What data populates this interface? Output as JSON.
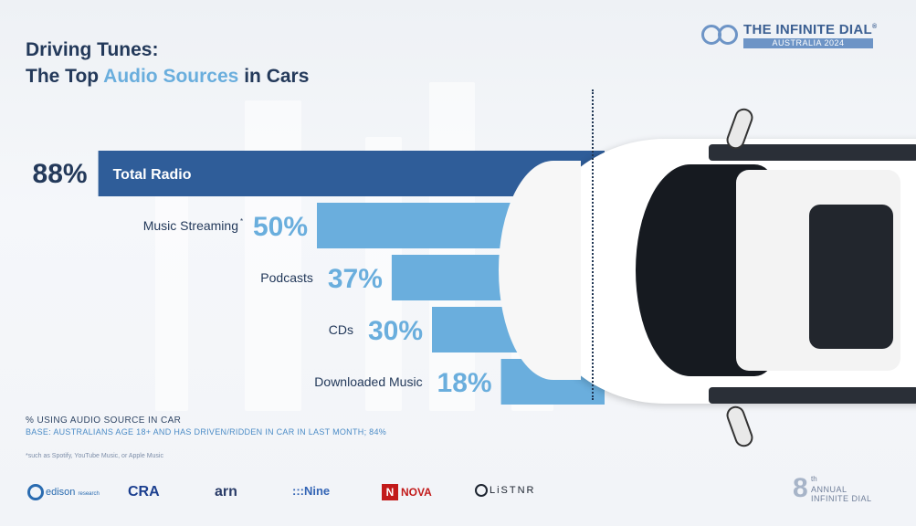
{
  "title": {
    "line1": "Driving Tunes:",
    "line2_pre": "The Top ",
    "line2_highlight": "Audio Sources",
    "line2_post": " in Cars"
  },
  "brand": {
    "name": "THE INFINITE DIAL",
    "registered": "®",
    "edition": "AUSTRALIA 2024"
  },
  "chart_data": {
    "type": "bar",
    "orientation": "horizontal",
    "unit": "%",
    "categories": [
      "Total Radio",
      "Music Streaming",
      "Podcasts",
      "CDs",
      "Downloaded Music"
    ],
    "values": [
      88,
      50,
      37,
      30,
      18
    ],
    "value_labels": [
      "88%",
      "50%",
      "37%",
      "30%",
      "18%"
    ],
    "category_footnote_marks": [
      "",
      "*",
      "",
      "",
      ""
    ],
    "xlim": [
      0,
      100
    ],
    "highlight_index": 0,
    "colors": {
      "highlight": "#2f5d99",
      "default": "#6aaedd"
    }
  },
  "footer": {
    "measure": "% USING AUDIO SOURCE IN CAR",
    "base": "BASE: AUSTRALIANS AGE 18+ AND HAS DRIVEN/RIDDEN IN CAR IN LAST MONTH; 84%",
    "footnote": "*such as Spotify, YouTube Music, or Apple Music"
  },
  "partners": {
    "edison": "edison",
    "edison_sub": "research",
    "cra": "CRA",
    "arn": "arn",
    "nine": ":::Nine",
    "nova_mark": "N",
    "nova": "NOVA",
    "listnr": "LiSTNR"
  },
  "annual": {
    "number": "8",
    "suffix": "th",
    "line1": "ANNUAL",
    "line2": "INFINITE DIAL"
  },
  "icons": {
    "brand_logo": "infinity-rings-icon",
    "car": "car-top-view-icon"
  }
}
